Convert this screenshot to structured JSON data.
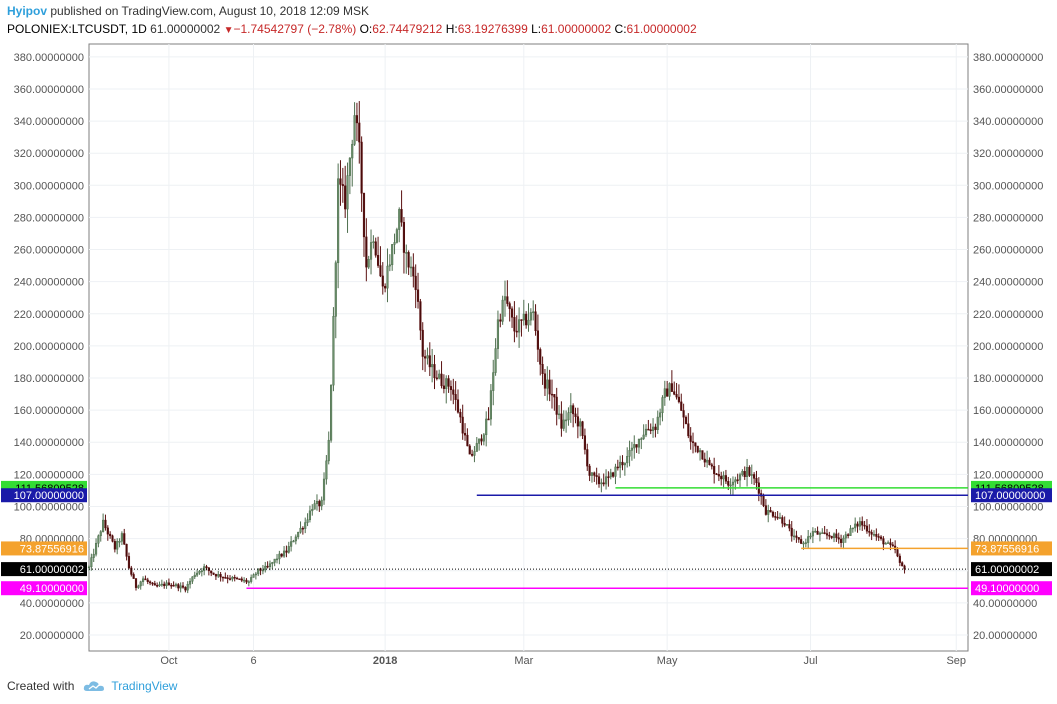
{
  "header": {
    "author": "Hyipov",
    "published": "published on TradingView.com, August 10, 2018 12:09 MSK",
    "symbol": "POLONIEX:LTCUSDT, 1D",
    "last": "61.00000002",
    "change": "−1.74542797 (−2.78%)",
    "o_label": "O:",
    "o_value": "62.74479212",
    "h_label": "H:",
    "h_value": "63.19276399",
    "l_label": "L:",
    "l_value": "61.00000002",
    "c_label": "C:",
    "c_value": "61.00000002"
  },
  "footer": {
    "created_with": "Created with",
    "brand": "TradingView",
    "brand_icon": "tradingview-cloud-icon"
  },
  "colors": {
    "up": "#4f6f4f",
    "down": "#5a1010",
    "green_line": "#33dd33",
    "blue_line": "#1a1aa8",
    "orange_line": "#f4a22d",
    "magenta_line": "#ff00ff",
    "last_price": "#000000"
  },
  "chart_data": {
    "type": "candlestick",
    "ylim": [
      10,
      388
    ],
    "y_ticks": [
      "20.00000000",
      "40.00000000",
      "60.00000000",
      "80.00000000",
      "100.00000000",
      "120.00000000",
      "140.00000000",
      "160.00000000",
      "180.00000000",
      "200.00000000",
      "220.00000000",
      "240.00000000",
      "260.00000000",
      "280.00000000",
      "300.00000000",
      "320.00000000",
      "340.00000000",
      "360.00000000",
      "380.00000000"
    ],
    "x_ticks": [
      "Oct",
      "6",
      "2018",
      "Mar",
      "May",
      "Jul",
      "Sep"
    ],
    "x_tick_dates": [
      "2017-10-01",
      "2017-11-06",
      "2018-01-01",
      "2018-03-01",
      "2018-05-01",
      "2018-07-01",
      "2018-09-01"
    ],
    "xlim": [
      "2017-08-28",
      "2018-09-06"
    ],
    "price_series": [
      [
        "2017-08-28",
        62
      ],
      [
        "2017-08-31",
        76
      ],
      [
        "2017-09-03",
        90
      ],
      [
        "2017-09-08",
        74
      ],
      [
        "2017-09-11",
        82
      ],
      [
        "2017-09-14",
        62
      ],
      [
        "2017-09-17",
        50
      ],
      [
        "2017-09-20",
        55
      ],
      [
        "2017-09-25",
        50
      ],
      [
        "2017-10-01",
        52
      ],
      [
        "2017-10-08",
        49
      ],
      [
        "2017-10-12",
        58
      ],
      [
        "2017-10-16",
        62
      ],
      [
        "2017-10-20",
        58
      ],
      [
        "2017-10-25",
        56
      ],
      [
        "2017-11-01",
        54
      ],
      [
        "2017-11-04",
        53
      ],
      [
        "2017-11-08",
        60
      ],
      [
        "2017-11-12",
        62
      ],
      [
        "2017-11-16",
        68
      ],
      [
        "2017-11-20",
        72
      ],
      [
        "2017-11-24",
        82
      ],
      [
        "2017-11-28",
        90
      ],
      [
        "2017-12-01",
        100
      ],
      [
        "2017-12-05",
        102
      ],
      [
        "2017-12-08",
        140
      ],
      [
        "2017-12-10",
        215
      ],
      [
        "2017-12-12",
        300
      ],
      [
        "2017-12-15",
        290
      ],
      [
        "2017-12-19",
        345
      ],
      [
        "2017-12-21",
        320
      ],
      [
        "2017-12-24",
        250
      ],
      [
        "2017-12-27",
        270
      ],
      [
        "2017-12-31",
        235
      ],
      [
        "2018-01-04",
        260
      ],
      [
        "2018-01-07",
        280
      ],
      [
        "2018-01-10",
        255
      ],
      [
        "2018-01-14",
        240
      ],
      [
        "2018-01-17",
        195
      ],
      [
        "2018-01-21",
        185
      ],
      [
        "2018-01-25",
        178
      ],
      [
        "2018-01-29",
        175
      ],
      [
        "2018-02-02",
        155
      ],
      [
        "2018-02-06",
        130
      ],
      [
        "2018-02-10",
        140
      ],
      [
        "2018-02-14",
        155
      ],
      [
        "2018-02-18",
        215
      ],
      [
        "2018-02-21",
        230
      ],
      [
        "2018-02-25",
        210
      ],
      [
        "2018-03-01",
        215
      ],
      [
        "2018-03-05",
        220
      ],
      [
        "2018-03-09",
        180
      ],
      [
        "2018-03-13",
        170
      ],
      [
        "2018-03-17",
        150
      ],
      [
        "2018-03-21",
        160
      ],
      [
        "2018-03-25",
        150
      ],
      [
        "2018-03-29",
        120
      ],
      [
        "2018-04-02",
        115
      ],
      [
        "2018-04-06",
        117
      ],
      [
        "2018-04-10",
        125
      ],
      [
        "2018-04-14",
        130
      ],
      [
        "2018-04-18",
        140
      ],
      [
        "2018-04-22",
        148
      ],
      [
        "2018-04-26",
        150
      ],
      [
        "2018-04-30",
        170
      ],
      [
        "2018-05-03",
        175
      ],
      [
        "2018-05-07",
        160
      ],
      [
        "2018-05-11",
        140
      ],
      [
        "2018-05-15",
        135
      ],
      [
        "2018-05-19",
        125
      ],
      [
        "2018-05-23",
        120
      ],
      [
        "2018-05-27",
        115
      ],
      [
        "2018-05-31",
        118
      ],
      [
        "2018-06-04",
        122
      ],
      [
        "2018-06-08",
        115
      ],
      [
        "2018-06-12",
        97
      ],
      [
        "2018-06-16",
        95
      ],
      [
        "2018-06-20",
        90
      ],
      [
        "2018-06-24",
        80
      ],
      [
        "2018-06-28",
        77
      ],
      [
        "2018-07-02",
        84
      ],
      [
        "2018-07-06",
        82
      ],
      [
        "2018-07-10",
        82
      ],
      [
        "2018-07-14",
        79
      ],
      [
        "2018-07-18",
        85
      ],
      [
        "2018-07-22",
        90
      ],
      [
        "2018-07-26",
        85
      ],
      [
        "2018-07-30",
        80
      ],
      [
        "2018-08-03",
        76
      ],
      [
        "2018-08-06",
        73
      ],
      [
        "2018-08-08",
        64
      ],
      [
        "2018-08-10",
        61
      ]
    ],
    "horizontal_lines": [
      {
        "label": "111.56809528",
        "value": 111.56809528,
        "from": "2018-04-09",
        "color": "#33dd33",
        "text_color": "#000000"
      },
      {
        "label": "107.00000000",
        "value": 107.0,
        "from": "2018-02-09",
        "color": "#1a1aa8",
        "text_color": "#ffffff"
      },
      {
        "label": "73.87556916",
        "value": 73.87556916,
        "from": "2018-06-27",
        "color": "#f4a22d",
        "text_color": "#ffffff"
      },
      {
        "label": "61.00000002",
        "value": 61.00000002,
        "from": "2017-08-28",
        "color": "#000000",
        "text_color": "#ffffff",
        "dotted": true
      },
      {
        "label": "49.10000000",
        "value": 49.1,
        "from": "2017-11-03",
        "color": "#ff00ff",
        "text_color": "#ffffff"
      }
    ]
  }
}
